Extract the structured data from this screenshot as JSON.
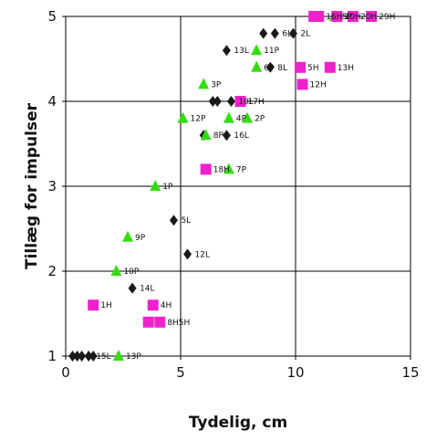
{
  "chart_data": {
    "type": "scatter",
    "title": "",
    "xlabel": "Tydelig, cm",
    "ylabel": "Tillæg for impulser",
    "xlim": [
      0,
      15
    ],
    "ylim": [
      1,
      5
    ],
    "xticks": [
      0,
      5,
      10,
      15
    ],
    "yticks": [
      1,
      2,
      3,
      4,
      5
    ],
    "grid": true,
    "legend": "none",
    "series": [
      {
        "marker": "diamond",
        "color": "#1a1a1a",
        "points": [
          {
            "x": 0.3,
            "y": 1.0,
            "label": ""
          },
          {
            "x": 0.5,
            "y": 1.0,
            "label": ""
          },
          {
            "x": 0.7,
            "y": 1.0,
            "label": ""
          },
          {
            "x": 1.0,
            "y": 1.0,
            "label": "15L"
          },
          {
            "x": 1.2,
            "y": 1.0,
            "label": ""
          },
          {
            "x": 2.9,
            "y": 1.8,
            "label": "14L"
          },
          {
            "x": 4.7,
            "y": 2.6,
            "label": "5L"
          },
          {
            "x": 5.3,
            "y": 2.2,
            "label": "12L"
          },
          {
            "x": 6.0,
            "y": 3.6,
            "label": ""
          },
          {
            "x": 7.0,
            "y": 3.6,
            "label": "16L"
          },
          {
            "x": 6.4,
            "y": 4.0,
            "label": ""
          },
          {
            "x": 6.6,
            "y": 4.0,
            "label": ""
          },
          {
            "x": 7.2,
            "y": 4.0,
            "label": "10L"
          },
          {
            "x": 7.0,
            "y": 4.6,
            "label": "13L"
          },
          {
            "x": 8.6,
            "y": 4.8,
            "label": ""
          },
          {
            "x": 9.1,
            "y": 4.8,
            "label": "6L"
          },
          {
            "x": 9.9,
            "y": 4.8,
            "label": "2L"
          },
          {
            "x": 8.9,
            "y": 4.4,
            "label": "8L"
          }
        ]
      },
      {
        "marker": "triangle",
        "color": "#33dd11",
        "points": [
          {
            "x": 2.3,
            "y": 1.0,
            "label": "13P"
          },
          {
            "x": 2.2,
            "y": 2.0,
            "label": "10P"
          },
          {
            "x": 2.7,
            "y": 2.4,
            "label": "9P"
          },
          {
            "x": 3.9,
            "y": 3.0,
            "label": "1P"
          },
          {
            "x": 5.1,
            "y": 3.8,
            "label": "12P"
          },
          {
            "x": 6.1,
            "y": 3.6,
            "label": "8P"
          },
          {
            "x": 6.0,
            "y": 4.2,
            "label": "3P"
          },
          {
            "x": 7.1,
            "y": 3.2,
            "label": "7P"
          },
          {
            "x": 7.1,
            "y": 3.8,
            "label": "4P"
          },
          {
            "x": 7.9,
            "y": 3.8,
            "label": "2P"
          },
          {
            "x": 8.3,
            "y": 4.6,
            "label": "11P"
          },
          {
            "x": 8.3,
            "y": 4.4,
            "label": "6P"
          },
          {
            "x": 11.7,
            "y": 5.0,
            "label": "5P"
          }
        ]
      },
      {
        "marker": "square",
        "color": "#ee22cc",
        "points": [
          {
            "x": 1.2,
            "y": 1.6,
            "label": "1H"
          },
          {
            "x": 3.8,
            "y": 1.6,
            "label": "4H"
          },
          {
            "x": 3.6,
            "y": 1.4,
            "label": ""
          },
          {
            "x": 4.1,
            "y": 1.4,
            "label": "8H5H"
          },
          {
            "x": 6.1,
            "y": 3.2,
            "label": "18H"
          },
          {
            "x": 7.6,
            "y": 4.0,
            "label": "17H"
          },
          {
            "x": 10.2,
            "y": 4.4,
            "label": "5H"
          },
          {
            "x": 10.3,
            "y": 4.2,
            "label": "12H"
          },
          {
            "x": 11.5,
            "y": 4.4,
            "label": "13H"
          },
          {
            "x": 10.8,
            "y": 5.0,
            "label": ""
          },
          {
            "x": 11.0,
            "y": 5.0,
            "label": "16H"
          },
          {
            "x": 11.8,
            "y": 5.0,
            "label": "10H"
          },
          {
            "x": 12.5,
            "y": 5.0,
            "label": "20H"
          },
          {
            "x": 13.3,
            "y": 5.0,
            "label": "29H"
          }
        ]
      }
    ]
  }
}
